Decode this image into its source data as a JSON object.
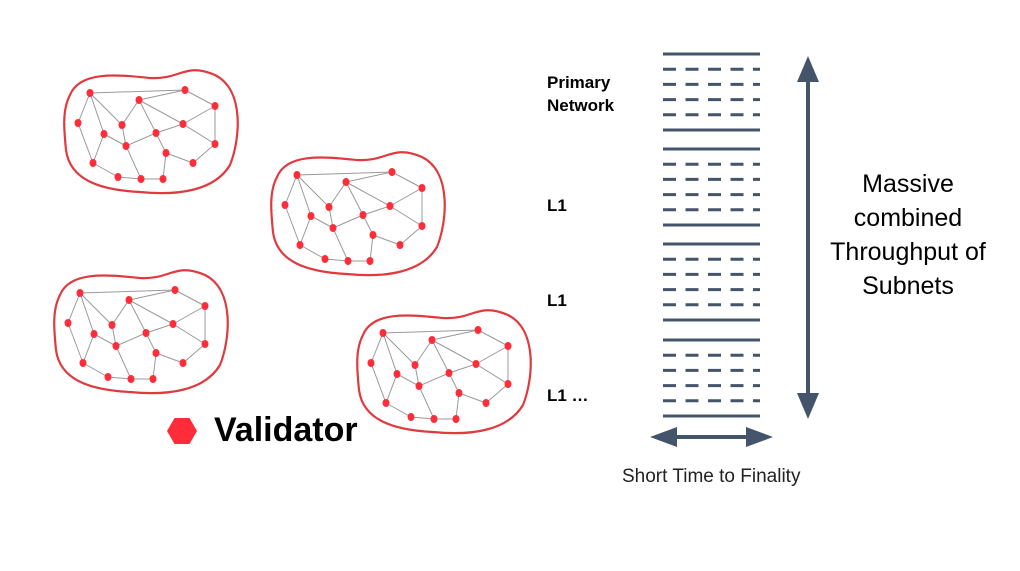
{
  "legend": {
    "label": "Validator",
    "icon": "red-hexagon",
    "color": "#ff2d3a"
  },
  "layers": [
    {
      "label": "Primary Network"
    },
    {
      "label": "L1"
    },
    {
      "label": "L1"
    },
    {
      "label": "L1 …"
    }
  ],
  "vertical_arrow_label": "Massive combined Throughput of Subnets",
  "horizontal_arrow_label": "Short Time to Finality",
  "colors": {
    "node": "#ff2d3a",
    "blob_outline": "#e0393e",
    "edge": "#999999",
    "lines": "#44546a"
  }
}
